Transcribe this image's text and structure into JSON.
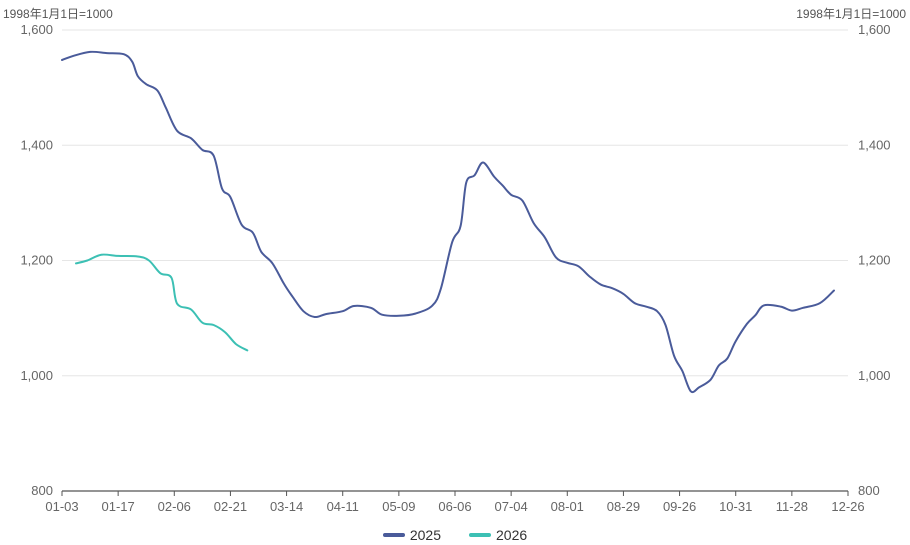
{
  "chart_data": {
    "type": "line",
    "unit_label_left": "1998年1月1日=1000",
    "unit_label_right": "1998年1月1日=1000",
    "ylim": [
      800,
      1600
    ],
    "yticks": [
      "800",
      "1,000",
      "1,200",
      "1,400",
      "1,600"
    ],
    "yticks_values": [
      800,
      1000,
      1200,
      1400,
      1600
    ],
    "xticks": [
      "01-03",
      "01-17",
      "02-06",
      "02-21",
      "03-14",
      "04-11",
      "05-09",
      "06-06",
      "07-04",
      "08-01",
      "08-29",
      "09-26",
      "10-31",
      "11-28",
      "12-26"
    ],
    "grid": true,
    "legend_position": "bottom",
    "series": [
      {
        "name": "2025",
        "color": "#4a5b9a",
        "points": [
          [
            0,
            1548
          ],
          [
            0.2,
            1555
          ],
          [
            0.5,
            1562
          ],
          [
            0.8,
            1560
          ],
          [
            1.1,
            1558
          ],
          [
            1.25,
            1545
          ],
          [
            1.35,
            1520
          ],
          [
            1.5,
            1506
          ],
          [
            1.7,
            1495
          ],
          [
            1.85,
            1465
          ],
          [
            2.05,
            1425
          ],
          [
            2.3,
            1412
          ],
          [
            2.5,
            1392
          ],
          [
            2.7,
            1382
          ],
          [
            2.85,
            1325
          ],
          [
            3.0,
            1310
          ],
          [
            3.2,
            1262
          ],
          [
            3.4,
            1248
          ],
          [
            3.55,
            1215
          ],
          [
            3.75,
            1195
          ],
          [
            3.95,
            1160
          ],
          [
            4.1,
            1138
          ],
          [
            4.3,
            1112
          ],
          [
            4.5,
            1102
          ],
          [
            4.7,
            1107
          ],
          [
            5.0,
            1112
          ],
          [
            5.2,
            1121
          ],
          [
            5.5,
            1118
          ],
          [
            5.7,
            1106
          ],
          [
            6.0,
            1104
          ],
          [
            6.3,
            1108
          ],
          [
            6.6,
            1122
          ],
          [
            6.75,
            1152
          ],
          [
            6.95,
            1232
          ],
          [
            7.1,
            1260
          ],
          [
            7.2,
            1335
          ],
          [
            7.35,
            1348
          ],
          [
            7.5,
            1370
          ],
          [
            7.7,
            1345
          ],
          [
            7.85,
            1330
          ],
          [
            8.0,
            1314
          ],
          [
            8.2,
            1304
          ],
          [
            8.4,
            1265
          ],
          [
            8.6,
            1240
          ],
          [
            8.8,
            1205
          ],
          [
            9.0,
            1196
          ],
          [
            9.2,
            1190
          ],
          [
            9.4,
            1172
          ],
          [
            9.6,
            1158
          ],
          [
            9.8,
            1152
          ],
          [
            10.0,
            1142
          ],
          [
            10.2,
            1126
          ],
          [
            10.4,
            1120
          ],
          [
            10.6,
            1112
          ],
          [
            10.75,
            1088
          ],
          [
            10.9,
            1035
          ],
          [
            11.05,
            1008
          ],
          [
            11.2,
            973
          ],
          [
            11.35,
            980
          ],
          [
            11.55,
            993
          ],
          [
            11.7,
            1018
          ],
          [
            11.85,
            1030
          ],
          [
            12.0,
            1060
          ],
          [
            12.2,
            1090
          ],
          [
            12.35,
            1105
          ],
          [
            12.5,
            1122
          ],
          [
            12.8,
            1120
          ],
          [
            13.0,
            1113
          ],
          [
            13.2,
            1118
          ],
          [
            13.5,
            1126
          ],
          [
            13.75,
            1148
          ]
        ]
      },
      {
        "name": "2026",
        "color": "#3cc0b4",
        "points": [
          [
            0.25,
            1195
          ],
          [
            0.45,
            1200
          ],
          [
            0.7,
            1210
          ],
          [
            1.0,
            1208
          ],
          [
            1.35,
            1207
          ],
          [
            1.55,
            1200
          ],
          [
            1.75,
            1178
          ],
          [
            1.95,
            1170
          ],
          [
            2.05,
            1125
          ],
          [
            2.3,
            1115
          ],
          [
            2.5,
            1092
          ],
          [
            2.7,
            1088
          ],
          [
            2.9,
            1076
          ],
          [
            3.1,
            1055
          ],
          [
            3.3,
            1044
          ]
        ]
      }
    ]
  }
}
